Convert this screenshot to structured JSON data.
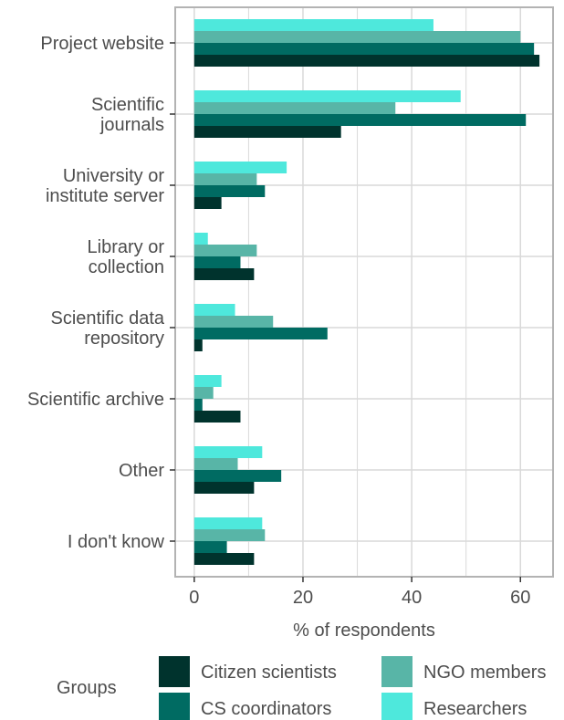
{
  "chart_data": {
    "type": "bar",
    "orientation": "horizontal",
    "categories": [
      [
        "Project website"
      ],
      [
        "Scientific",
        "journals"
      ],
      [
        "University or",
        "institute server"
      ],
      [
        "Library or",
        "collection"
      ],
      [
        "Scientific data",
        "repository"
      ],
      [
        "Scientific archive"
      ],
      [
        "Other"
      ],
      [
        "I don't know"
      ]
    ],
    "series": [
      {
        "name": "Researchers",
        "color": "#4ee8dc",
        "values": [
          44,
          49,
          17,
          2.5,
          7.5,
          5,
          12.5,
          12.5
        ]
      },
      {
        "name": "NGO members",
        "color": "#58b5a7",
        "values": [
          60,
          37,
          11.5,
          11.5,
          14.5,
          3.5,
          8,
          13
        ]
      },
      {
        "name": "CS coordinators",
        "color": "#006b62",
        "values": [
          62.5,
          61,
          13,
          8.5,
          24.5,
          1.5,
          16,
          6
        ]
      },
      {
        "name": "Citizen scientists",
        "color": "#00332d",
        "values": [
          63.5,
          27,
          5,
          11,
          1.5,
          8.5,
          11,
          11
        ]
      }
    ],
    "xlabel": "% of respondents",
    "xlim": [
      -3.5,
      66
    ],
    "xticks": [
      0,
      20,
      40,
      60
    ],
    "grid": true,
    "legend": {
      "title": "Groups",
      "position": "bottom",
      "order": [
        "Citizen scientists",
        "CS coordinators",
        "NGO members",
        "Researchers"
      ]
    }
  }
}
